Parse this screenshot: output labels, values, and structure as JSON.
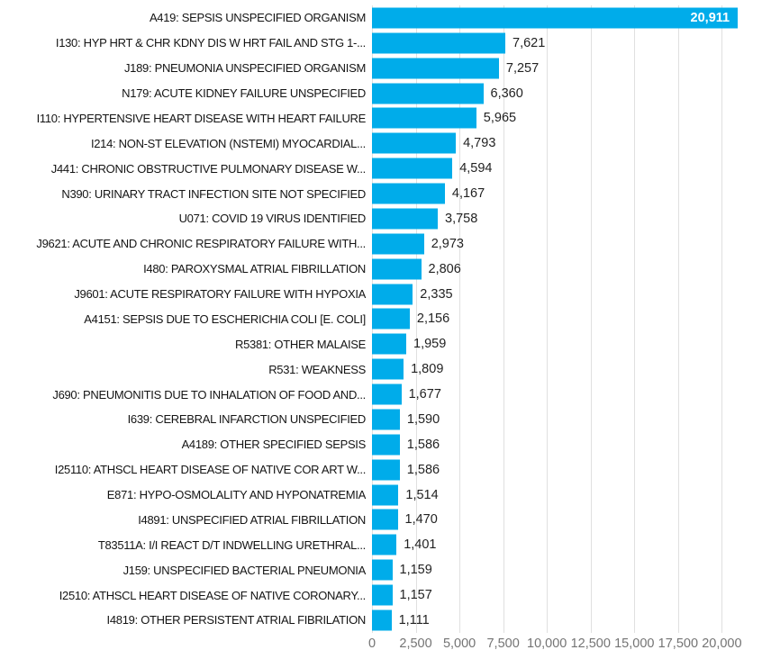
{
  "colors": {
    "bar": "#00acea",
    "gridline": "#e0e0e0",
    "category_text": "#141414",
    "value_text": "#222222",
    "value_text_inside": "#ffffff",
    "axis_text": "#747474",
    "background": "#ffffff"
  },
  "chart_data": {
    "type": "bar",
    "orientation": "horizontal",
    "title": "",
    "xlabel": "",
    "ylabel": "",
    "grid": "vertical",
    "legend": "none",
    "xlim": [
      0,
      22300
    ],
    "x_tick_step": 2500,
    "x_tick_labels": [
      "0",
      "2,500",
      "5,000",
      "7,500",
      "10,000",
      "12,500",
      "15,000",
      "17,500",
      "20,000"
    ],
    "categories": [
      "A419: SEPSIS UNSPECIFIED ORGANISM",
      "I130: HYP HRT & CHR KDNY DIS W HRT FAIL AND STG 1-...",
      "J189: PNEUMONIA UNSPECIFIED ORGANISM",
      "N179: ACUTE KIDNEY FAILURE UNSPECIFIED",
      "I110: HYPERTENSIVE HEART DISEASE WITH HEART FAILURE",
      "I214: NON-ST ELEVATION (NSTEMI) MYOCARDIAL...",
      "J441: CHRONIC OBSTRUCTIVE PULMONARY DISEASE W...",
      "N390: URINARY TRACT INFECTION SITE NOT SPECIFIED",
      "U071: COVID 19 VIRUS IDENTIFIED",
      "J9621: ACUTE AND CHRONIC RESPIRATORY FAILURE WITH...",
      "I480: PAROXYSMAL ATRIAL FIBRILLATION",
      "J9601: ACUTE RESPIRATORY FAILURE WITH HYPOXIA",
      "A4151: SEPSIS DUE TO ESCHERICHIA COLI [E. COLI]",
      "R5381: OTHER MALAISE",
      "R531: WEAKNESS",
      "J690: PNEUMONITIS DUE TO INHALATION OF FOOD AND...",
      "I639: CEREBRAL INFARCTION UNSPECIFIED",
      "A4189: OTHER SPECIFIED SEPSIS",
      "I25110: ATHSCL HEART DISEASE OF NATIVE COR ART W...",
      "E871: HYPO-OSMOLALITY AND HYPONATREMIA",
      "I4891: UNSPECIFIED ATRIAL FIBRILLATION",
      "T83511A: I/I REACT D/T INDWELLING URETHRAL...",
      "J159: UNSPECIFIED BACTERIAL PNEUMONIA",
      "I2510: ATHSCL HEART DISEASE OF NATIVE CORONARY...",
      "I4819: OTHER PERSISTENT ATRIAL FIBRILATION"
    ],
    "values": [
      20911,
      7621,
      7257,
      6360,
      5965,
      4793,
      4594,
      4167,
      3758,
      2973,
      2806,
      2335,
      2156,
      1959,
      1809,
      1677,
      1590,
      1586,
      1586,
      1514,
      1470,
      1401,
      1159,
      1157,
      1111
    ],
    "value_labels": [
      "20,911",
      "7,621",
      "7,257",
      "6,360",
      "5,965",
      "4,793",
      "4,594",
      "4,167",
      "3,758",
      "2,973",
      "2,806",
      "2,335",
      "2,156",
      "1,959",
      "1,809",
      "1,677",
      "1,590",
      "1,586",
      "1,586",
      "1,514",
      "1,470",
      "1,401",
      "1,159",
      "1,157",
      "1,111"
    ]
  }
}
